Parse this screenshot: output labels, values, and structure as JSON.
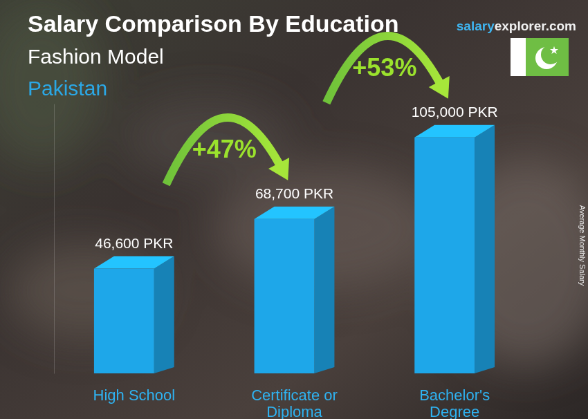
{
  "chart_data": {
    "type": "bar",
    "title": "Salary Comparison By Education",
    "subtitle": "Fashion Model",
    "country": "Pakistan",
    "source": [
      "salary",
      "explorer.com"
    ],
    "y_label": "Average Monthly Salary",
    "categories": [
      "High School",
      "Certificate or Diploma",
      "Bachelor's Degree"
    ],
    "values": [
      46600,
      68700,
      105000
    ],
    "value_labels": [
      "46,600 PKR",
      "68,700 PKR",
      "105,000 PKR"
    ],
    "data_labels": true,
    "color": "#1ea7e9",
    "ylim": [
      0,
      120000
    ],
    "tick_labels": "x",
    "changes": [
      {
        "value": 47,
        "label": "+47%"
      },
      {
        "value": 53,
        "label": "+53%"
      }
    ]
  }
}
